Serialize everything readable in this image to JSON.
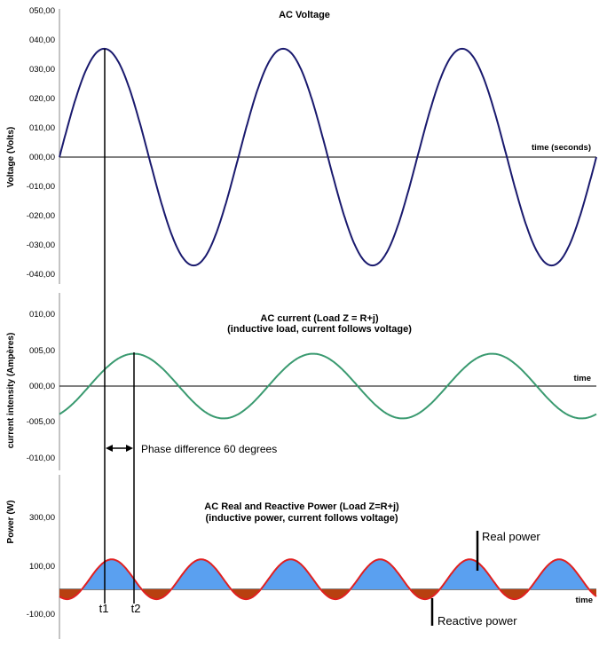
{
  "chart_data": [
    {
      "type": "line",
      "title": "AC Voltage",
      "subtitle": "",
      "xlabel": "time  (seconds)",
      "ylabel": "Voltage (Volts)",
      "ylim": [
        -40,
        50
      ],
      "yticks": [
        "050,00",
        "040,00",
        "030,00",
        "020,00",
        "010,00",
        "000,00",
        "-010,00",
        "-020,00",
        "-030,00",
        "-040,00"
      ],
      "series": [
        {
          "type": "sine",
          "amplitude": 37,
          "cycles": 3,
          "phase_deg": 0,
          "color": "#1a1a6e"
        }
      ]
    },
    {
      "type": "line",
      "title": "AC current (Load Z = R+j)",
      "subtitle": "(inductive load, current follows voltage)",
      "xlabel": "time",
      "ylabel": "current  intensity (Ampères)",
      "ylim": [
        -10,
        12
      ],
      "yticks": [
        "010,00",
        "005,00",
        "000,00",
        "-005,00",
        "-010,00"
      ],
      "series": [
        {
          "type": "sine",
          "amplitude": 4.5,
          "cycles": 3,
          "phase_deg": -60,
          "color": "#3a9a70"
        }
      ]
    },
    {
      "type": "area",
      "title": "AC Real and Reactive Power (Load Z=R+j)",
      "subtitle": "(inductive power, current follows voltage)",
      "xlabel": "time",
      "ylabel": "Power (W)",
      "ylim": [
        -140,
        420
      ],
      "yticks": [
        "300,00",
        "100,00",
        "-100,00"
      ],
      "series": [
        {
          "type": "power",
          "peak": 125,
          "trough": -41,
          "cycles": 6,
          "line_color": "#e02020",
          "positive_fill": "#5aa0f0",
          "negative_fill": "#b84010"
        }
      ]
    }
  ],
  "annotations": {
    "t1": "t1",
    "t2": "t2",
    "phase": "Phase difference 60 degrees",
    "real_power": "Real power",
    "reactive_power": "Reactive power"
  }
}
